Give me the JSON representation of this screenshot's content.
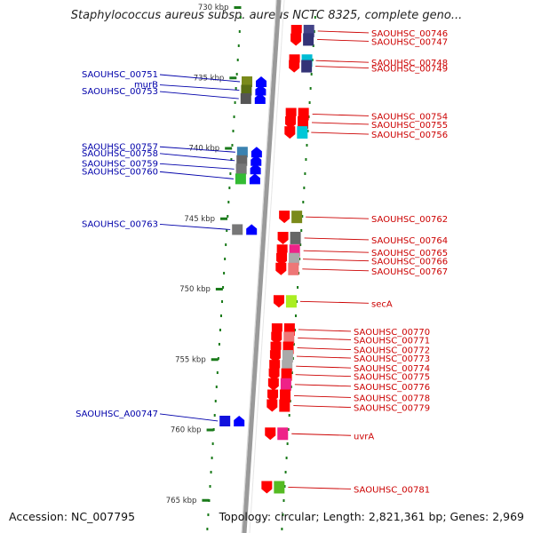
{
  "title": "Staphylococcus aureus subsp. aureus NCTC 8325, complete geno...",
  "footer": {
    "accession": "Accession: NC_007795",
    "summary": "Topology: circular; Length: 2,821,361 bp; Genes: 2,969"
  },
  "scale": {
    "ticks": [
      {
        "label": "730 kbp",
        "kbp": 730
      },
      {
        "label": "735 kbp",
        "kbp": 735
      },
      {
        "label": "740 kbp",
        "kbp": 740
      },
      {
        "label": "745 kbp",
        "kbp": 745
      },
      {
        "label": "750 kbp",
        "kbp": 750
      },
      {
        "label": "755 kbp",
        "kbp": 755
      },
      {
        "label": "760 kbp",
        "kbp": 760
      },
      {
        "label": "765 kbp",
        "kbp": 765
      }
    ]
  },
  "genes": {
    "reverse": [
      {
        "label": "SAOUHSC_00751",
        "kbp": 735.3,
        "color": "#7a8a1a"
      },
      {
        "label": "murB",
        "kbp": 735.9,
        "color": "#5a6e14"
      },
      {
        "label": "SAOUHSC_00753",
        "kbp": 736.5,
        "color": "#555555"
      },
      {
        "label": "SAOUHSC_00757",
        "kbp": 740.3,
        "color": "#3a82b0"
      },
      {
        "label": "SAOUHSC_00758",
        "kbp": 740.9,
        "color": "#666666"
      },
      {
        "label": "SAOUHSC_00759",
        "kbp": 741.5,
        "color": "#777777"
      },
      {
        "label": "SAOUHSC_00760",
        "kbp": 742.2,
        "color": "#33bb33"
      },
      {
        "label": "SAOUHSC_00763",
        "kbp": 745.8,
        "color": "#777777"
      },
      {
        "label": "SAOUHSC_A00747",
        "kbp": 759.4,
        "color": "#1111dd"
      }
    ],
    "forward": [
      {
        "label": "SAOUHSC_00746",
        "kbp": 731.7,
        "color": "#444488"
      },
      {
        "label": "SAOUHSC_00747",
        "kbp": 732.3,
        "color": "#333377"
      },
      {
        "label": "SAOUHSC_00748",
        "kbp": 733.8,
        "color": "#00bcd4"
      },
      {
        "label": "SAOUHSC_00749",
        "kbp": 734.2,
        "color": "#333377"
      },
      {
        "label": "SAOUHSC_00754",
        "kbp": 737.6,
        "color": "#ff0000"
      },
      {
        "label": "SAOUHSC_00755",
        "kbp": 738.2,
        "color": "#ff0000"
      },
      {
        "label": "SAOUHSC_00756",
        "kbp": 738.9,
        "color": "#00c8d8"
      },
      {
        "label": "SAOUHSC_00762",
        "kbp": 744.9,
        "color": "#7a8a1a"
      },
      {
        "label": "SAOUHSC_00764",
        "kbp": 746.4,
        "color": "#666666"
      },
      {
        "label": "SAOUHSC_00765",
        "kbp": 747.3,
        "color": "#ee2288"
      },
      {
        "label": "SAOUHSC_00766",
        "kbp": 747.9,
        "color": "#aaaaaa"
      },
      {
        "label": "SAOUHSC_00767",
        "kbp": 748.6,
        "color": "#ee7777"
      },
      {
        "label": "secA",
        "kbp": 750.9,
        "color": "#aaee22"
      },
      {
        "label": "SAOUHSC_00770",
        "kbp": 752.9,
        "color": "#ff0000"
      },
      {
        "label": "SAOUHSC_00771",
        "kbp": 753.5,
        "color": "#ee7777"
      },
      {
        "label": "SAOUHSC_00772",
        "kbp": 754.2,
        "color": "#ff0000"
      },
      {
        "label": "SAOUHSC_00773",
        "kbp": 754.8,
        "color": "#aaaaaa"
      },
      {
        "label": "SAOUHSC_00774",
        "kbp": 755.5,
        "color": "#aaaaaa"
      },
      {
        "label": "SAOUHSC_00775",
        "kbp": 756.1,
        "color": "#ff0000"
      },
      {
        "label": "SAOUHSC_00776",
        "kbp": 756.8,
        "color": "#ee2288"
      },
      {
        "label": "SAOUHSC_00778",
        "kbp": 757.6,
        "color": "#ff0000"
      },
      {
        "label": "SAOUHSC_00779",
        "kbp": 758.3,
        "color": "#ff0000"
      },
      {
        "label": "uvrA",
        "kbp": 760.3,
        "color": "#ee2288"
      },
      {
        "label": "SAOUHSC_00781",
        "kbp": 764.1,
        "color": "#55bb22"
      }
    ]
  },
  "colors": {
    "forward_strand": "#ff0000",
    "reverse_strand": "#0000ff",
    "forward_label": "#cc0000",
    "reverse_label": "#0000aa",
    "backbone": "#888888",
    "tick": "#1a7a1a"
  }
}
